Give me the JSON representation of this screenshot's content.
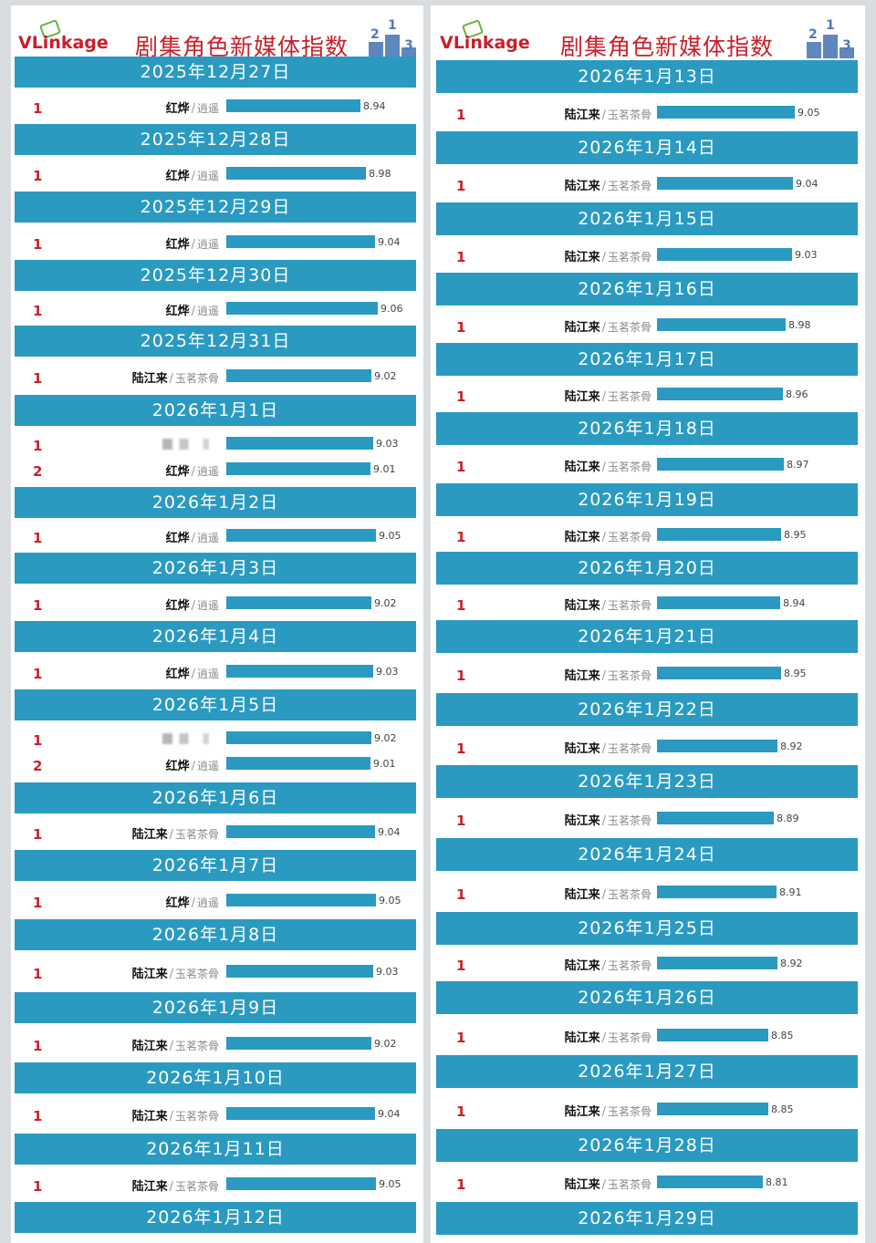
{
  "header": {
    "logo": "VLinkage",
    "title": "剧集角色新媒体指数",
    "podium_numbers": [
      "2",
      "1",
      "3"
    ]
  },
  "colors": {
    "band": "#2a9ac1",
    "rank": "#c8202a",
    "bar": "#2a9ac1"
  },
  "chart_data": {
    "type": "bar",
    "title": "剧集角色新媒体指数",
    "xlim": [
      8.0,
      9.1
    ],
    "panels": [
      {
        "days": [
          {
            "date": "2025年12月27日",
            "entries": [
              {
                "rank": "1",
                "name": "红烨",
                "drama": "逍遥",
                "value": 8.94
              }
            ]
          },
          {
            "date": "2025年12月28日",
            "entries": [
              {
                "rank": "1",
                "name": "红烨",
                "drama": "逍遥",
                "value": 8.98
              }
            ]
          },
          {
            "date": "2025年12月29日",
            "entries": [
              {
                "rank": "1",
                "name": "红烨",
                "drama": "逍遥",
                "value": 9.04
              }
            ]
          },
          {
            "date": "2025年12月30日",
            "entries": [
              {
                "rank": "1",
                "name": "红烨",
                "drama": "逍遥",
                "value": 9.06
              }
            ]
          },
          {
            "date": "2025年12月31日",
            "entries": [
              {
                "rank": "1",
                "name": "陆江来",
                "drama": "玉茗茶骨",
                "value": 9.02
              }
            ]
          },
          {
            "date": "2026年1月1日",
            "entries": [
              {
                "rank": "1",
                "name": "",
                "drama": "",
                "value": 9.03
              },
              {
                "rank": "2",
                "name": "红烨",
                "drama": "逍遥",
                "value": 9.01
              }
            ]
          },
          {
            "date": "2026年1月2日",
            "entries": [
              {
                "rank": "1",
                "name": "红烨",
                "drama": "逍遥",
                "value": 9.05
              }
            ]
          },
          {
            "date": "2026年1月3日",
            "entries": [
              {
                "rank": "1",
                "name": "红烨",
                "drama": "逍遥",
                "value": 9.02
              }
            ]
          },
          {
            "date": "2026年1月4日",
            "entries": [
              {
                "rank": "1",
                "name": "红烨",
                "drama": "逍遥",
                "value": 9.03
              }
            ]
          },
          {
            "date": "2026年1月5日",
            "entries": [
              {
                "rank": "1",
                "name": "",
                "drama": "",
                "value": 9.02
              },
              {
                "rank": "2",
                "name": "红烨",
                "drama": "逍遥",
                "value": 9.01
              }
            ]
          },
          {
            "date": "2026年1月6日",
            "entries": [
              {
                "rank": "1",
                "name": "陆江来",
                "drama": "玉茗茶骨",
                "value": 9.04
              }
            ]
          },
          {
            "date": "2026年1月7日",
            "entries": [
              {
                "rank": "1",
                "name": "红烨",
                "drama": "逍遥",
                "value": 9.05
              }
            ]
          },
          {
            "date": "2026年1月8日",
            "entries": [
              {
                "rank": "1",
                "name": "陆江来",
                "drama": "玉茗茶骨",
                "value": 9.03
              }
            ]
          },
          {
            "date": "2026年1月9日",
            "entries": [
              {
                "rank": "1",
                "name": "陆江来",
                "drama": "玉茗茶骨",
                "value": 9.02
              }
            ]
          },
          {
            "date": "2026年1月10日",
            "entries": [
              {
                "rank": "1",
                "name": "陆江来",
                "drama": "玉茗茶骨",
                "value": 9.04
              }
            ]
          },
          {
            "date": "2026年1月11日",
            "entries": [
              {
                "rank": "1",
                "name": "陆江来",
                "drama": "玉茗茶骨",
                "value": 9.05
              }
            ]
          },
          {
            "date": "2026年1月12日",
            "entries": []
          }
        ]
      },
      {
        "days": [
          {
            "date": "2026年1月13日",
            "entries": [
              {
                "rank": "1",
                "name": "陆江来",
                "drama": "玉茗茶骨",
                "value": 9.05
              }
            ]
          },
          {
            "date": "2026年1月14日",
            "entries": [
              {
                "rank": "1",
                "name": "陆江来",
                "drama": "玉茗茶骨",
                "value": 9.04
              }
            ]
          },
          {
            "date": "2026年1月15日",
            "entries": [
              {
                "rank": "1",
                "name": "陆江来",
                "drama": "玉茗茶骨",
                "value": 9.03
              }
            ]
          },
          {
            "date": "2026年1月16日",
            "entries": [
              {
                "rank": "1",
                "name": "陆江来",
                "drama": "玉茗茶骨",
                "value": 8.98
              }
            ]
          },
          {
            "date": "2026年1月17日",
            "entries": [
              {
                "rank": "1",
                "name": "陆江来",
                "drama": "玉茗茶骨",
                "value": 8.96
              }
            ]
          },
          {
            "date": "2026年1月18日",
            "entries": [
              {
                "rank": "1",
                "name": "陆江来",
                "drama": "玉茗茶骨",
                "value": 8.97
              }
            ]
          },
          {
            "date": "2026年1月19日",
            "entries": [
              {
                "rank": "1",
                "name": "陆江来",
                "drama": "玉茗茶骨",
                "value": 8.95
              }
            ]
          },
          {
            "date": "2026年1月20日",
            "entries": [
              {
                "rank": "1",
                "name": "陆江来",
                "drama": "玉茗茶骨",
                "value": 8.94
              }
            ]
          },
          {
            "date": "2026年1月21日",
            "entries": [
              {
                "rank": "1",
                "name": "陆江来",
                "drama": "玉茗茶骨",
                "value": 8.95
              }
            ]
          },
          {
            "date": "2026年1月22日",
            "entries": [
              {
                "rank": "1",
                "name": "陆江来",
                "drama": "玉茗茶骨",
                "value": 8.92
              }
            ]
          },
          {
            "date": "2026年1月23日",
            "entries": [
              {
                "rank": "1",
                "name": "陆江来",
                "drama": "玉茗茶骨",
                "value": 8.89
              }
            ]
          },
          {
            "date": "2026年1月24日",
            "entries": [
              {
                "rank": "1",
                "name": "陆江来",
                "drama": "玉茗茶骨",
                "value": 8.91
              }
            ]
          },
          {
            "date": "2026年1月25日",
            "entries": [
              {
                "rank": "1",
                "name": "陆江来",
                "drama": "玉茗茶骨",
                "value": 8.92
              }
            ]
          },
          {
            "date": "2026年1月26日",
            "entries": [
              {
                "rank": "1",
                "name": "陆江来",
                "drama": "玉茗茶骨",
                "value": 8.85
              }
            ]
          },
          {
            "date": "2026年1月27日",
            "entries": [
              {
                "rank": "1",
                "name": "陆江来",
                "drama": "玉茗茶骨",
                "value": 8.85
              }
            ]
          },
          {
            "date": "2026年1月28日",
            "entries": [
              {
                "rank": "1",
                "name": "陆江来",
                "drama": "玉茗茶骨",
                "value": 8.81
              }
            ]
          },
          {
            "date": "2026年1月29日",
            "entries": []
          }
        ]
      }
    ]
  }
}
